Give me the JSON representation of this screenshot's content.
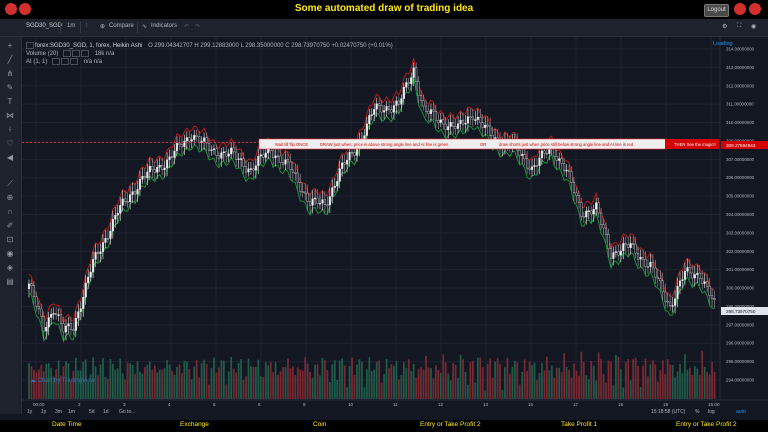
{
  "app": {
    "title": "Some automated draw of trading idea",
    "logout_label": "Logout"
  },
  "toolbar": {
    "symbol": "SGD30_SGD",
    "interval": "1m",
    "compare_label": "Compare",
    "indicators_label": "Indicators",
    "loading_label": "Loading"
  },
  "legend": {
    "main": "forex:SGD30_SGD, 1, forex, Heikin Ashi",
    "ohlc": "O 299.04342707  H 299.12883000  L 298.35000000  C 298.73970750  +0.02470750 (+0.01%)",
    "volume": "Volume (20)",
    "volume_vals": "18k  n/a",
    "ai": "AI (1, 1)",
    "ai_vals": "n/a  n/a"
  },
  "annotation": {
    "text1": "Wait till flip ONCE",
    "text2": "DRAW just when: price is above strong angle line and AI line is green",
    "text3": "OR",
    "text4": "draw shorts just when price still below strong angle line and AI line is red",
    "text5": "THEN See the magic!!",
    "level_label": "308.27694943"
  },
  "axis": {
    "price_ticks": [
      "314.00000000",
      "313.00000000",
      "312.00000000",
      "311.00000000",
      "310.00000000",
      "309.00000000",
      "307.00000000",
      "306.00000000",
      "305.00000000",
      "304.00000000",
      "303.00000000",
      "302.00000000",
      "301.00000000",
      "300.00000000",
      "299.00000000",
      "297.00000000",
      "296.00000000",
      "295.00000000",
      "294.00000000"
    ],
    "current_price": "298.73970750",
    "time_ticks": [
      "00:00",
      "2",
      "3",
      "4",
      "5",
      "6",
      "9",
      "10",
      "11",
      "12",
      "13",
      "16",
      "17",
      "18",
      "19",
      "15:00"
    ],
    "timezone": "15:18:58 (UTC)",
    "scale_modes": [
      "%",
      "log",
      "auto"
    ]
  },
  "timeframes": [
    "1y",
    "1y",
    "3m",
    "1m",
    "5d",
    "1d",
    "Go to..."
  ],
  "watermark": "Chart by TradingView",
  "footer": {
    "columns": [
      "Date Time",
      "Exchange",
      "Coin",
      "Entry or Take Profit 2",
      "Take Profit 1",
      "Entry or Take Profit 2"
    ]
  },
  "chart_data": {
    "type": "candlestick",
    "title": "forex:SGD30_SGD, 1, forex, Heikin Ashi",
    "ylim": [
      294,
      314
    ],
    "x_ticks": [
      "00:00",
      "2",
      "3",
      "4",
      "5",
      "6",
      "9",
      "10",
      "11",
      "12",
      "13",
      "16",
      "17",
      "18",
      "19",
      "15:00"
    ],
    "close_path": [
      {
        "x": 0,
        "y": 300.0
      },
      {
        "x": 6,
        "y": 297.4
      },
      {
        "x": 10,
        "y": 298.6
      },
      {
        "x": 14,
        "y": 297.2
      },
      {
        "x": 18,
        "y": 297.5
      },
      {
        "x": 26,
        "y": 301.2
      },
      {
        "x": 36,
        "y": 304.2
      },
      {
        "x": 46,
        "y": 306.2
      },
      {
        "x": 56,
        "y": 307.2
      },
      {
        "x": 66,
        "y": 308.8
      },
      {
        "x": 74,
        "y": 307.8
      },
      {
        "x": 82,
        "y": 307.6
      },
      {
        "x": 90,
        "y": 306.7
      },
      {
        "x": 98,
        "y": 307.9
      },
      {
        "x": 106,
        "y": 306.7
      },
      {
        "x": 114,
        "y": 304.8
      },
      {
        "x": 120,
        "y": 304.6
      },
      {
        "x": 126,
        "y": 306.6
      },
      {
        "x": 132,
        "y": 307.8
      },
      {
        "x": 140,
        "y": 310.2
      },
      {
        "x": 150,
        "y": 310.5
      },
      {
        "x": 156,
        "y": 312.6
      },
      {
        "x": 160,
        "y": 310.2
      },
      {
        "x": 166,
        "y": 309.6
      },
      {
        "x": 174,
        "y": 309.1
      },
      {
        "x": 180,
        "y": 310.0
      },
      {
        "x": 188,
        "y": 308.5
      },
      {
        "x": 196,
        "y": 308.1
      },
      {
        "x": 204,
        "y": 306.8
      },
      {
        "x": 212,
        "y": 308.0
      },
      {
        "x": 218,
        "y": 306.6
      },
      {
        "x": 224,
        "y": 304.2
      },
      {
        "x": 230,
        "y": 304.4
      },
      {
        "x": 236,
        "y": 301.8
      },
      {
        "x": 244,
        "y": 302.2
      },
      {
        "x": 252,
        "y": 301.0
      },
      {
        "x": 260,
        "y": 298.7
      },
      {
        "x": 266,
        "y": 300.6
      },
      {
        "x": 272,
        "y": 300.6
      },
      {
        "x": 278,
        "y": 298.7
      }
    ],
    "annotation_level": 308.27694943,
    "last_price": 298.7397075
  }
}
